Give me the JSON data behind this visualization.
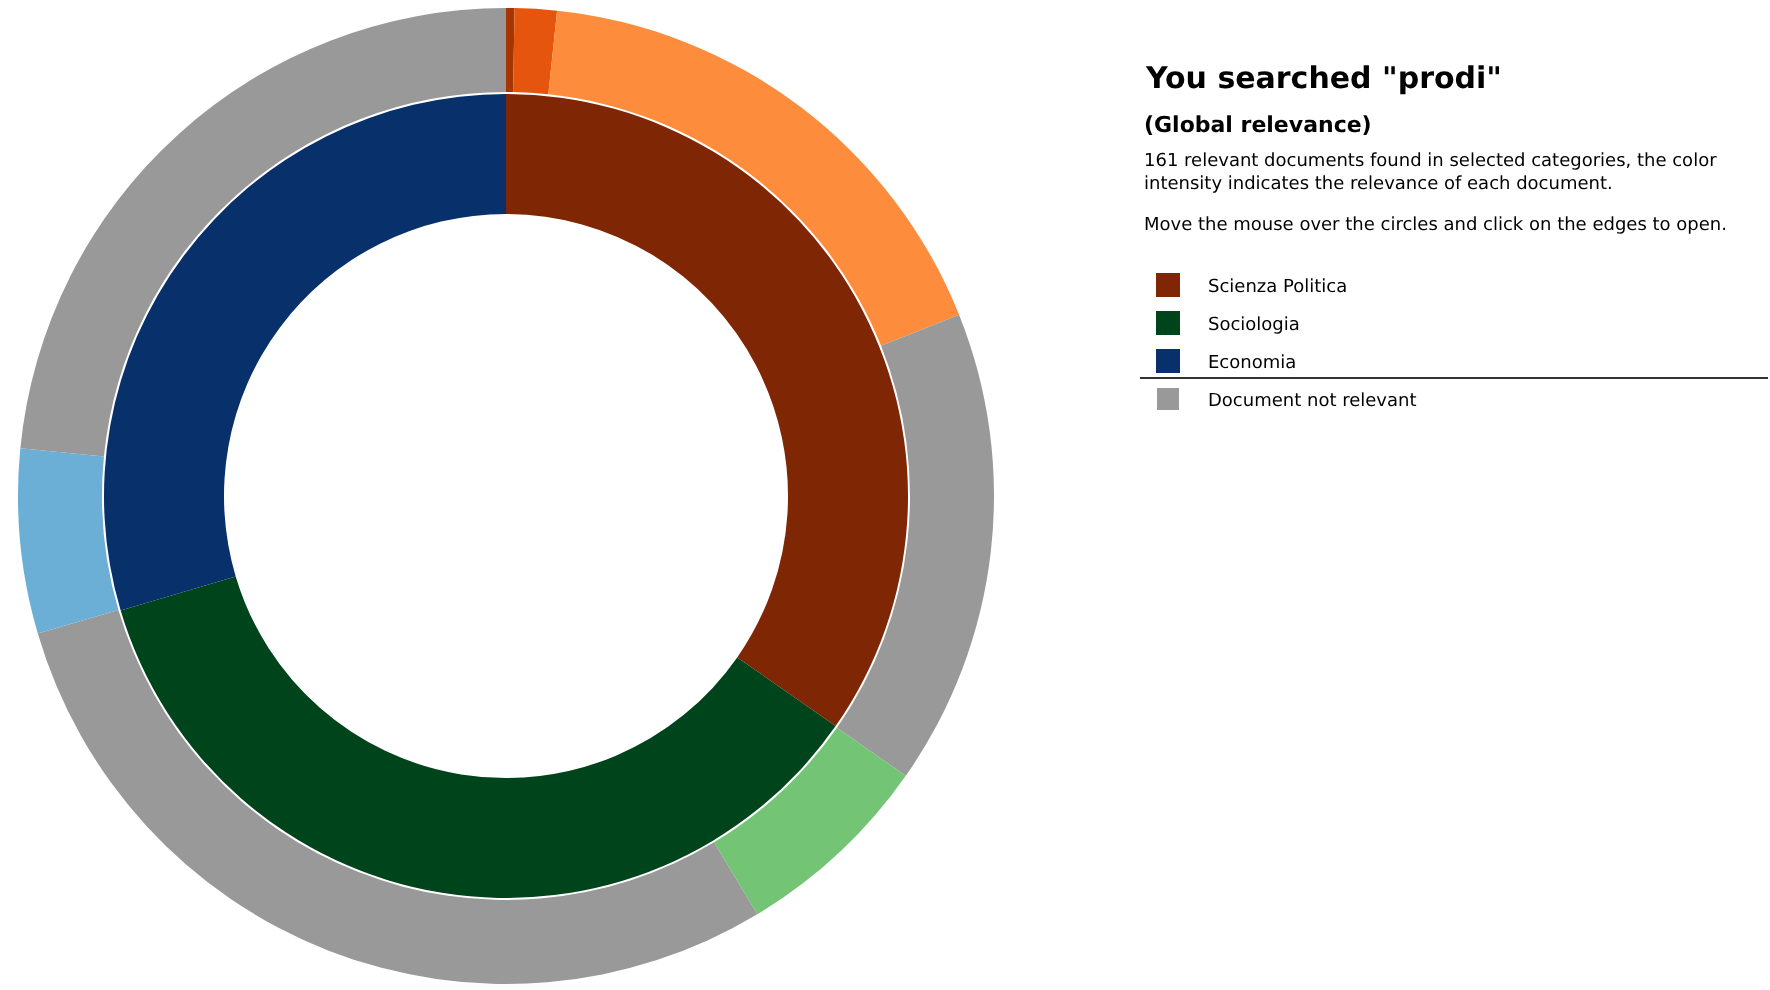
{
  "chart_data": [
    {
      "type": "donut",
      "title": "You searched \"prodi\"",
      "subtitle": "(Global relevance)",
      "annotations": [
        "161 relevant documents found in selected categories, the color intensity indicates the relevance of each document.",
        "Move the mouse over the circles and click on the edges to open."
      ],
      "legend": "right",
      "categories": [
        "Scienza Politica",
        "Sociologia",
        "Economia"
      ],
      "values": [
        34.7,
        35.7,
        29.6
      ],
      "colors": [
        "#7f2704",
        "#00441b",
        "#08306b"
      ]
    },
    {
      "type": "donut",
      "legend": "right",
      "categories": [
        null,
        null,
        null,
        "Document not relevant",
        null,
        null,
        null,
        null
      ],
      "values": [
        0.28,
        1.39,
        17.27,
        15.78,
        6.67,
        29.06,
        6.11,
        23.44
      ],
      "colors": [
        "#a63603",
        "#e6550d",
        "#fd8d3c",
        "#999999",
        "#74c476",
        "#999999",
        "#6baed6",
        "#999999"
      ]
    }
  ]
}
